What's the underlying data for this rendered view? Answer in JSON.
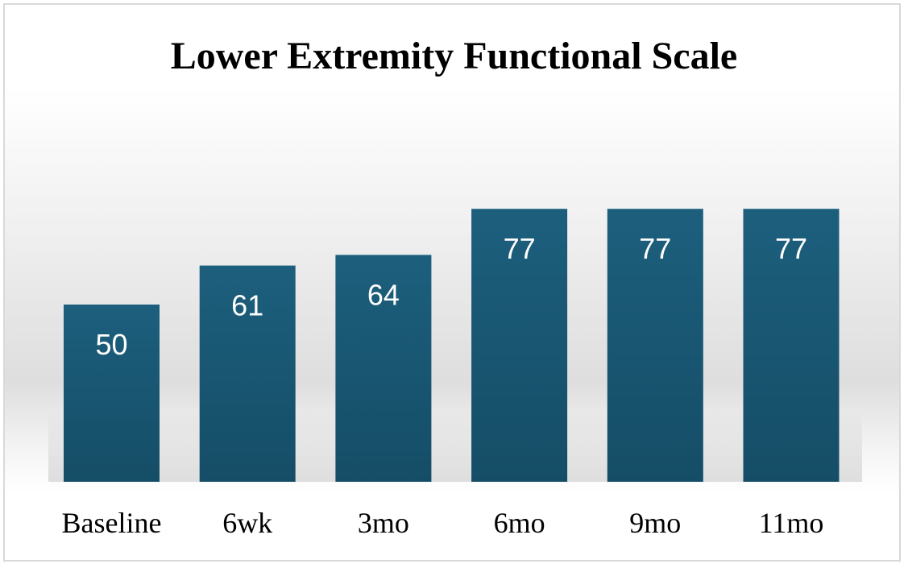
{
  "chart_data": {
    "type": "bar",
    "title": "Lower Extremity Functional Scale",
    "categories": [
      "Baseline",
      "6wk",
      "3mo",
      "6mo",
      "9mo",
      "11mo"
    ],
    "values": [
      50,
      61,
      64,
      77,
      77,
      77
    ],
    "xlabel": "",
    "ylabel": "",
    "ylim": [
      0,
      100
    ],
    "grid": false,
    "legend": "none",
    "bar_color": "#1c5f7d",
    "bar_color_bottom": "#154d66",
    "data_label_color": "#ffffff"
  }
}
